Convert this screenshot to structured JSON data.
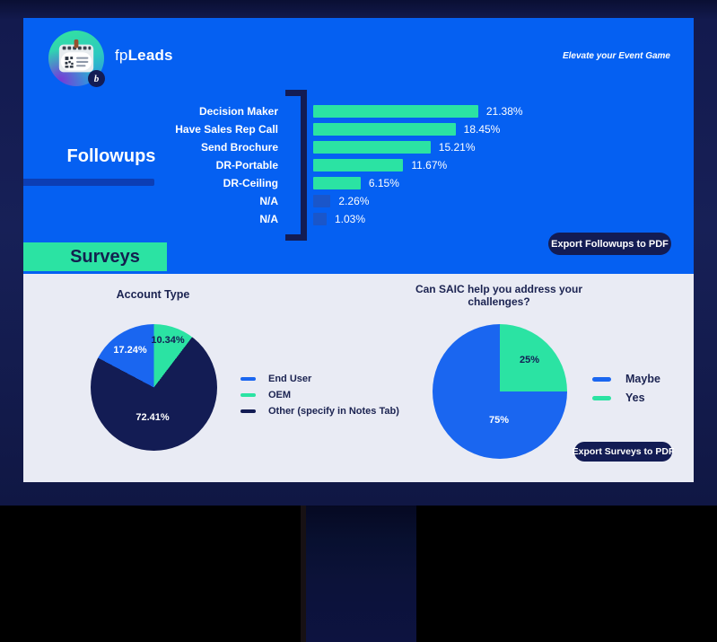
{
  "header": {
    "brand_prefix": "fp",
    "brand_suffix": "Leads",
    "logo_monogram": "b",
    "tagline": "Elevate your Event Game"
  },
  "followups": {
    "title": "Followups",
    "export_label": "Export Followups to PDF"
  },
  "surveys": {
    "title": "Surveys",
    "export_label": "Export Surveys to PDF"
  },
  "colors": {
    "screen_blue": "#0560f2",
    "accent_green": "#2be3a3",
    "navy": "#131c54",
    "pie_blue": "#1a66f0",
    "na_bar_blue": "#1a56ca",
    "panel_bg": "#e9ebf4"
  },
  "chart_data": [
    {
      "type": "bar",
      "orientation": "horizontal",
      "section": "Followups",
      "categories": [
        "Decision Maker",
        "Have Sales Rep Call",
        "Send Brochure",
        "DR-Portable",
        "DR-Ceiling",
        "N/A",
        "N/A"
      ],
      "values": [
        21.38,
        18.45,
        15.21,
        11.67,
        6.15,
        2.26,
        1.03
      ],
      "value_labels": [
        "21.38%",
        "18.45%",
        "15.21%",
        "11.67%",
        "6.15%",
        "2.26%",
        "1.03%"
      ],
      "bar_colors": [
        "#2be3a3",
        "#2be3a3",
        "#2be3a3",
        "#2be3a3",
        "#2be3a3",
        "#1a56ca",
        "#1a56ca"
      ],
      "xlim": [
        0,
        25
      ],
      "grid": false,
      "legend_position": "none"
    },
    {
      "type": "pie",
      "title": "Account Type",
      "slices": [
        {
          "label": "OEM",
          "value": 10.34,
          "display": "10.34%",
          "color": "#2be3a3"
        },
        {
          "label": "Other (specify in Notes Tab)",
          "value": 72.41,
          "display": "72.41%",
          "color": "#131c54"
        },
        {
          "label": "End User",
          "value": 17.24,
          "display": "17.24%",
          "color": "#1a66f0"
        }
      ],
      "legend": [
        {
          "label": "End User",
          "color": "#1a66f0"
        },
        {
          "label": "OEM",
          "color": "#2be3a3"
        },
        {
          "label": "Other (specify in Notes Tab)",
          "color": "#131c54"
        }
      ],
      "legend_position": "right"
    },
    {
      "type": "pie",
      "title": "Can SAIC help you address your challenges?",
      "slices": [
        {
          "label": "Yes",
          "value": 25,
          "display": "25%",
          "color": "#2be3a3"
        },
        {
          "label": "Maybe",
          "value": 75,
          "display": "75%",
          "color": "#1a66f0"
        }
      ],
      "legend": [
        {
          "label": "Maybe",
          "color": "#1a66f0"
        },
        {
          "label": "Yes",
          "color": "#2be3a3"
        }
      ],
      "legend_position": "right"
    }
  ]
}
